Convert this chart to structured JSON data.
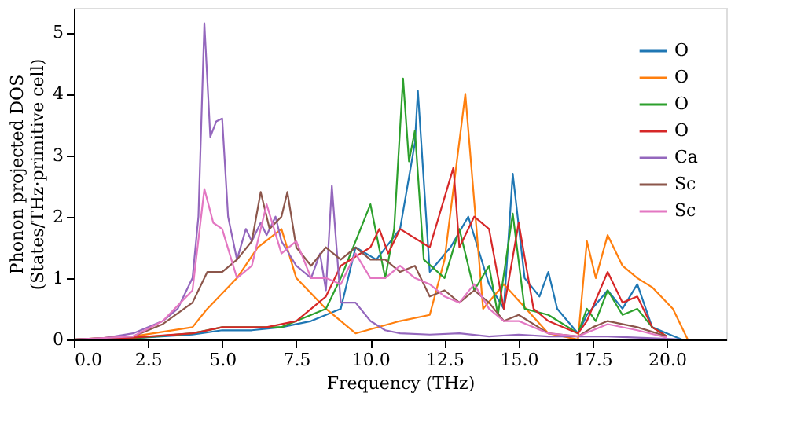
{
  "chart_data": {
    "type": "line",
    "xlabel": "Frequency (THz)",
    "ylabel": "Phonon projected DOS\n(States/THz·primitive cell)",
    "xlim": [
      0,
      22
    ],
    "ylim": [
      0,
      5.4
    ],
    "xticks": [
      {
        "value": 0,
        "label": "0.0"
      },
      {
        "value": 2.5,
        "label": "2.5"
      },
      {
        "value": 5,
        "label": "5.0"
      },
      {
        "value": 7.5,
        "label": "7.5"
      },
      {
        "value": 10,
        "label": "10.0"
      },
      {
        "value": 12.5,
        "label": "12.5"
      },
      {
        "value": 15,
        "label": "15.0"
      },
      {
        "value": 17.5,
        "label": "17.5"
      },
      {
        "value": 20,
        "label": "20.0"
      }
    ],
    "yticks": [
      0,
      1,
      2,
      3,
      4,
      5
    ],
    "legend": "top right",
    "grid": false,
    "line_style": "solid",
    "series": [
      {
        "name": "O",
        "color": "#1f77b4",
        "x": [
          0,
          2,
          4,
          5,
          6,
          7,
          8,
          9,
          9.5,
          10.2,
          11,
          11.5,
          11.6,
          12,
          12.7,
          13.3,
          14,
          14.5,
          14.8,
          15.2,
          15.7,
          16,
          16.3,
          17,
          17.3,
          18,
          18.5,
          19,
          19.5,
          20,
          20.5
        ],
        "values": [
          0,
          0.02,
          0.08,
          0.15,
          0.15,
          0.2,
          0.3,
          0.5,
          1.5,
          1.3,
          1.8,
          3.2,
          4.05,
          1.1,
          1.5,
          2.0,
          0.9,
          0.5,
          2.7,
          1.0,
          0.7,
          1.1,
          0.5,
          0.1,
          0.4,
          0.8,
          0.5,
          0.9,
          0.2,
          0.1,
          0
        ]
      },
      {
        "name": "O",
        "color": "#ff7f0e",
        "x": [
          0,
          2,
          4,
          4.5,
          5.5,
          6.2,
          7,
          7.5,
          8.5,
          9.5,
          11,
          12,
          12.5,
          13.2,
          13.8,
          14.5,
          16,
          17,
          17.3,
          17.6,
          18,
          18.5,
          19,
          19.5,
          20.2,
          20.7
        ],
        "values": [
          0,
          0.05,
          0.2,
          0.5,
          1.0,
          1.5,
          1.8,
          1.0,
          0.5,
          0.1,
          0.3,
          0.4,
          1.3,
          4.0,
          0.5,
          0.9,
          0.1,
          0,
          1.6,
          1.0,
          1.7,
          1.2,
          1.0,
          0.85,
          0.5,
          0
        ]
      },
      {
        "name": "O",
        "color": "#2ca02c",
        "x": [
          0,
          2,
          4,
          5,
          7,
          7.5,
          8.5,
          9,
          10,
          10.5,
          10.8,
          11.1,
          11.3,
          11.5,
          11.8,
          12.5,
          13,
          13.5,
          14,
          14.3,
          14.8,
          15.2,
          16,
          17,
          17.3,
          17.6,
          18,
          18.5,
          19,
          19.5,
          20
        ],
        "values": [
          0,
          0.02,
          0.1,
          0.2,
          0.2,
          0.3,
          0.5,
          1.0,
          2.2,
          1.0,
          1.8,
          4.25,
          2.9,
          3.4,
          1.3,
          1.0,
          1.8,
          0.8,
          1.2,
          0.4,
          2.05,
          0.5,
          0.4,
          0.1,
          0.5,
          0.3,
          0.8,
          0.4,
          0.5,
          0.2,
          0.05
        ]
      },
      {
        "name": "O",
        "color": "#d62728",
        "x": [
          0,
          2,
          4,
          5,
          6.5,
          7.5,
          8.5,
          9,
          10,
          10.3,
          10.6,
          11,
          12,
          12.8,
          13,
          13.5,
          14,
          14.5,
          15,
          15.5,
          16,
          17,
          17.3,
          18,
          18.5,
          19,
          19.5,
          20
        ],
        "values": [
          0,
          0.03,
          0.1,
          0.2,
          0.2,
          0.3,
          0.7,
          1.2,
          1.5,
          1.8,
          1.4,
          1.8,
          1.5,
          2.8,
          1.5,
          2.0,
          1.8,
          0.5,
          1.9,
          0.5,
          0.3,
          0.1,
          0.3,
          1.1,
          0.6,
          0.7,
          0.2,
          0.05
        ]
      },
      {
        "name": "Ca",
        "color": "#9467bd",
        "x": [
          0,
          1,
          2,
          3,
          3.5,
          4,
          4.2,
          4.4,
          4.6,
          4.8,
          5,
          5.2,
          5.5,
          5.8,
          6,
          6.3,
          6.5,
          6.8,
          7,
          7.5,
          8,
          8.3,
          8.5,
          8.7,
          9,
          9.5,
          10,
          10.5,
          11,
          12,
          13,
          14,
          15,
          16,
          17,
          18,
          19,
          20,
          20.5
        ],
        "values": [
          0,
          0.02,
          0.1,
          0.3,
          0.5,
          1.0,
          2.0,
          5.15,
          3.3,
          3.55,
          3.6,
          2.0,
          1.3,
          1.8,
          1.6,
          1.9,
          1.7,
          2.0,
          1.6,
          1.2,
          1.0,
          1.4,
          0.8,
          2.5,
          0.6,
          0.6,
          0.3,
          0.15,
          0.1,
          0.08,
          0.1,
          0.05,
          0.08,
          0.05,
          0.05,
          0.05,
          0.03,
          0.01,
          0
        ]
      },
      {
        "name": "Sc",
        "color": "#8c564b",
        "x": [
          0,
          2,
          3,
          4,
          4.5,
          5,
          5.5,
          6,
          6.3,
          6.6,
          7,
          7.2,
          7.5,
          8,
          8.5,
          9,
          9.5,
          10,
          10.5,
          11,
          11.5,
          12,
          12.5,
          13,
          13.5,
          14,
          14.5,
          15,
          16,
          17,
          17.5,
          18,
          19,
          20
        ],
        "values": [
          0,
          0.05,
          0.25,
          0.6,
          1.1,
          1.1,
          1.3,
          1.6,
          2.4,
          1.8,
          2.0,
          2.4,
          1.5,
          1.2,
          1.5,
          1.3,
          1.5,
          1.3,
          1.3,
          1.1,
          1.2,
          0.7,
          0.8,
          0.6,
          0.8,
          0.6,
          0.3,
          0.4,
          0.1,
          0.05,
          0.2,
          0.3,
          0.2,
          0.05
        ]
      },
      {
        "name": "Sc",
        "color": "#e377c2",
        "x": [
          0,
          2,
          3,
          4,
          4.4,
          4.7,
          5,
          5.5,
          6,
          6.5,
          7,
          7.5,
          8,
          8.5,
          9,
          9.5,
          10,
          10.5,
          11,
          11.5,
          12,
          12.5,
          13,
          13.5,
          14,
          14.5,
          15,
          16,
          17,
          17.5,
          18,
          19,
          20
        ],
        "values": [
          0,
          0.05,
          0.3,
          0.8,
          2.45,
          1.9,
          1.8,
          1.0,
          1.2,
          2.2,
          1.4,
          1.6,
          1.0,
          1.0,
          0.9,
          1.4,
          1.0,
          1.0,
          1.2,
          1.0,
          0.9,
          0.7,
          0.6,
          0.9,
          0.5,
          0.3,
          0.3,
          0.1,
          0.05,
          0.15,
          0.25,
          0.15,
          0.03
        ]
      }
    ]
  }
}
